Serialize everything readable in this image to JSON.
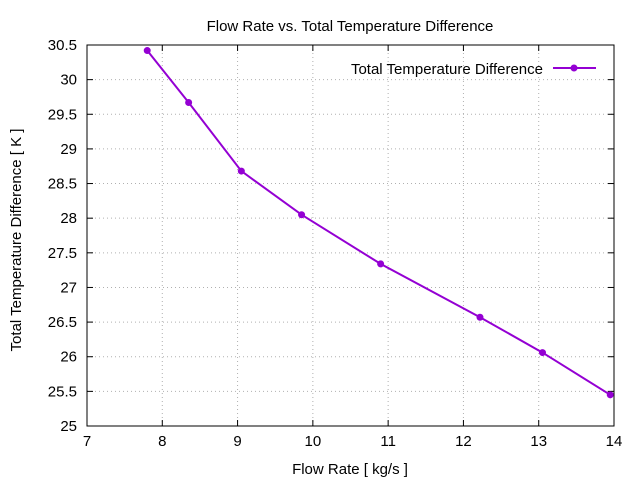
{
  "chart_data": {
    "type": "line",
    "title": "Flow Rate vs. Total Temperature Difference",
    "xlabel": "Flow Rate [ kg/s ]",
    "ylabel": "Total Temperature Difference [ K ]",
    "xlim": [
      7,
      14
    ],
    "ylim": [
      25,
      30.5
    ],
    "xticks": [
      "7",
      "8",
      "9",
      "10",
      "11",
      "12",
      "13",
      "14"
    ],
    "yticks": [
      "25",
      "25.5",
      "26",
      "26.5",
      "27",
      "27.5",
      "28",
      "28.5",
      "29",
      "29.5",
      "30",
      "30.5"
    ],
    "grid": true,
    "legend_position": "top-right",
    "series": [
      {
        "name": "Total Temperature Difference",
        "color": "#9400d3",
        "x": [
          7.8,
          8.35,
          9.05,
          9.85,
          10.9,
          12.22,
          13.05,
          13.95
        ],
        "y": [
          30.42,
          29.67,
          28.68,
          28.05,
          27.34,
          26.57,
          26.06,
          25.45
        ]
      }
    ]
  }
}
